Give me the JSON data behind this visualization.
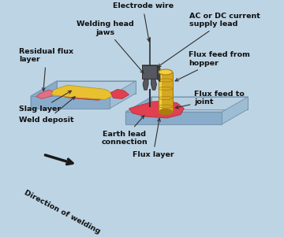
{
  "background_color": "#bdd4e4",
  "labels": {
    "electrode_wire": "Electrode wire",
    "welding_head_jaws": "Welding head\njaws",
    "ac_dc_current": "AC or DC current\nsupply lead",
    "residual_flux_layer": "Residual flux\nlayer",
    "slag_layer": "Slag layer",
    "weld_deposit": "Weld deposit",
    "flux_feed_from_hopper": "Flux feed from\nhopper",
    "flux_feed_to_joint": "Flux feed to\njoint",
    "earth_lead_connection": "Earth lead\nconnection",
    "flux_layer": "Flux layer",
    "direction_of_welding": "Direction of welding"
  },
  "colors": {
    "plate_top": "#b8cfe0",
    "plate_side_front": "#8aaccb",
    "plate_side_right": "#9dbdd5",
    "plate_edge": "#7090a8",
    "weld_red": "#e04050",
    "slag_yellow": "#e8c030",
    "welding_head": "#555860",
    "welding_head_light": "#6a6e78",
    "cylinder_main": "#d4a820",
    "cylinder_highlight": "#eed040",
    "cylinder_dark": "#a87c10",
    "wire_color": "#303030",
    "arrow_color": "#1a1a1a",
    "text_color": "#101010"
  },
  "figsize": [
    3.6,
    3.01
  ],
  "dpi": 100
}
